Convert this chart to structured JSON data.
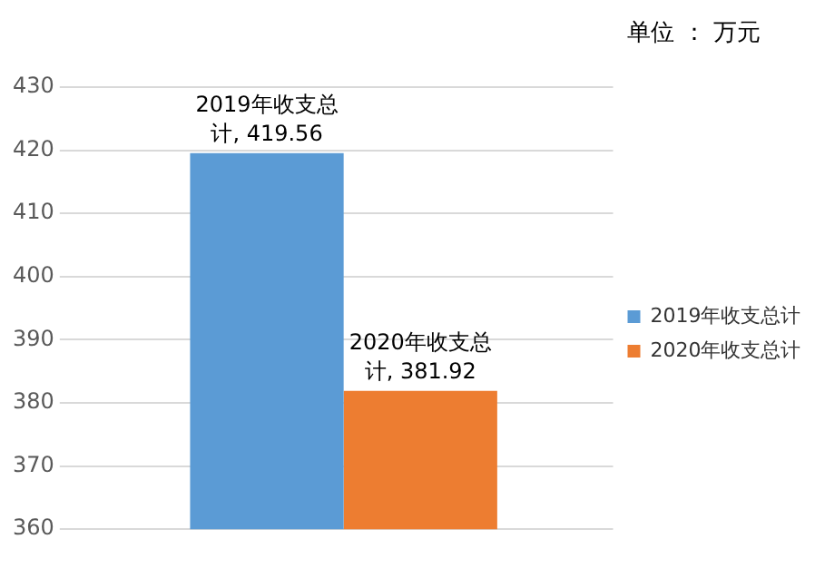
{
  "chart_data": {
    "type": "bar",
    "categories": [
      null
    ],
    "series": [
      {
        "name": "2019年收支总计",
        "color": "#5b9bd5",
        "values": [
          419.56
        ],
        "value_labels": [
          "2019年收支总计, 419.56"
        ]
      },
      {
        "name": "2020年收支总计",
        "color": "#ed7d31",
        "values": [
          381.92
        ],
        "value_labels": [
          "2020年收支总计, 381.92"
        ]
      }
    ],
    "ylim": [
      360,
      430
    ],
    "yticks": [
      360,
      370,
      380,
      390,
      400,
      410,
      420,
      430
    ],
    "grid": "y",
    "legend": "right",
    "annotations": [
      "单位 ： 万元"
    ]
  }
}
